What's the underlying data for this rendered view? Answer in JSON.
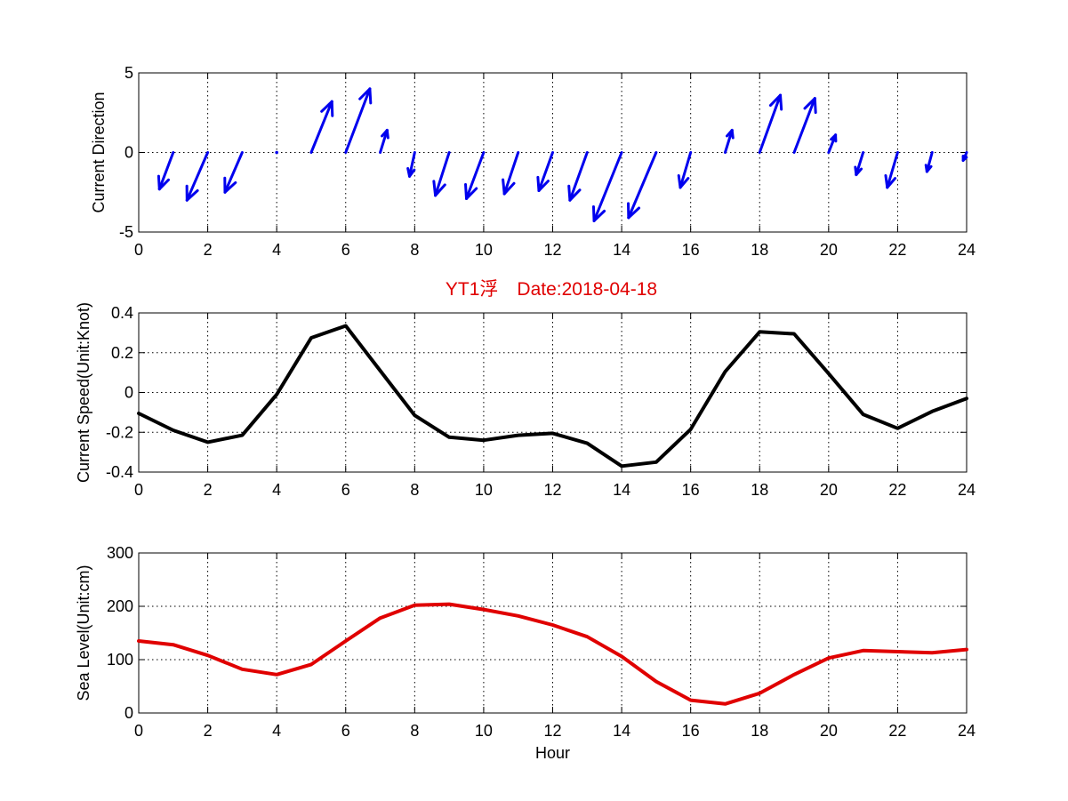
{
  "figure": {
    "title": "YT1浮　Date:2018-04-18",
    "title_color": "#e00000"
  },
  "chart_data": [
    {
      "type": "quiver",
      "ylabel": "Current Direction",
      "xlim": [
        0,
        24
      ],
      "ylim": [
        -5,
        5
      ],
      "xticks": [
        0,
        2,
        4,
        6,
        8,
        10,
        12,
        14,
        16,
        18,
        20,
        22,
        24
      ],
      "yticks": [
        -5,
        0,
        5
      ],
      "grid": true,
      "color": "#0000ee",
      "x": [
        1,
        2,
        3,
        4,
        5,
        6,
        7,
        8,
        9,
        10,
        11,
        12,
        13,
        14,
        15,
        16,
        17,
        18,
        19,
        20,
        21,
        22,
        23,
        24
      ],
      "u": [
        -0.4,
        -0.6,
        -0.5,
        0,
        0.6,
        0.7,
        0.2,
        -0.15,
        -0.4,
        -0.5,
        -0.4,
        -0.4,
        -0.5,
        -0.8,
        -0.8,
        -0.3,
        0.2,
        0.6,
        0.6,
        0.2,
        -0.2,
        -0.3,
        -0.15,
        -0.1
      ],
      "v": [
        -2.3,
        -3.0,
        -2.5,
        0,
        3.2,
        4.0,
        1.4,
        -1.5,
        -2.7,
        -2.9,
        -2.6,
        -2.4,
        -3.0,
        -4.3,
        -4.1,
        -2.2,
        1.4,
        3.6,
        3.4,
        1.1,
        -1.4,
        -2.2,
        -1.2,
        -0.5
      ]
    },
    {
      "type": "line",
      "ylabel": "Current Speed(Unit:Knot)",
      "xlim": [
        0,
        24
      ],
      "ylim": [
        -0.4,
        0.4
      ],
      "xticks": [
        0,
        2,
        4,
        6,
        8,
        10,
        12,
        14,
        16,
        18,
        20,
        22,
        24
      ],
      "yticks": [
        -0.4,
        -0.2,
        0,
        0.2,
        0.4
      ],
      "grid": true,
      "color": "#000000",
      "x": [
        0,
        1,
        2,
        3,
        4,
        5,
        6,
        7,
        8,
        9,
        10,
        11,
        12,
        13,
        14,
        15,
        16,
        17,
        18,
        19,
        20,
        21,
        22,
        23,
        24
      ],
      "y": [
        -0.105,
        -0.19,
        -0.25,
        -0.215,
        -0.01,
        0.275,
        0.335,
        0.11,
        -0.115,
        -0.225,
        -0.24,
        -0.215,
        -0.205,
        -0.255,
        -0.37,
        -0.35,
        -0.185,
        0.105,
        0.305,
        0.295,
        0.095,
        -0.11,
        -0.18,
        -0.095,
        -0.03
      ]
    },
    {
      "type": "line",
      "ylabel": "Sea Level(Unit:cm)",
      "xlabel": "Hour",
      "xlim": [
        0,
        24
      ],
      "ylim": [
        0,
        300
      ],
      "xticks": [
        0,
        2,
        4,
        6,
        8,
        10,
        12,
        14,
        16,
        18,
        20,
        22,
        24
      ],
      "yticks": [
        0,
        100,
        200,
        300
      ],
      "grid": true,
      "color": "#e00000",
      "x": [
        0,
        1,
        2,
        3,
        4,
        5,
        6,
        7,
        8,
        9,
        10,
        11,
        12,
        13,
        14,
        15,
        16,
        17,
        18,
        19,
        20,
        21,
        22,
        23,
        24
      ],
      "y": [
        135,
        128,
        108,
        82,
        72,
        91,
        135,
        178,
        202,
        204,
        194,
        182,
        165,
        143,
        106,
        59,
        24,
        17,
        37,
        72,
        103,
        117,
        115,
        113,
        119
      ]
    }
  ]
}
